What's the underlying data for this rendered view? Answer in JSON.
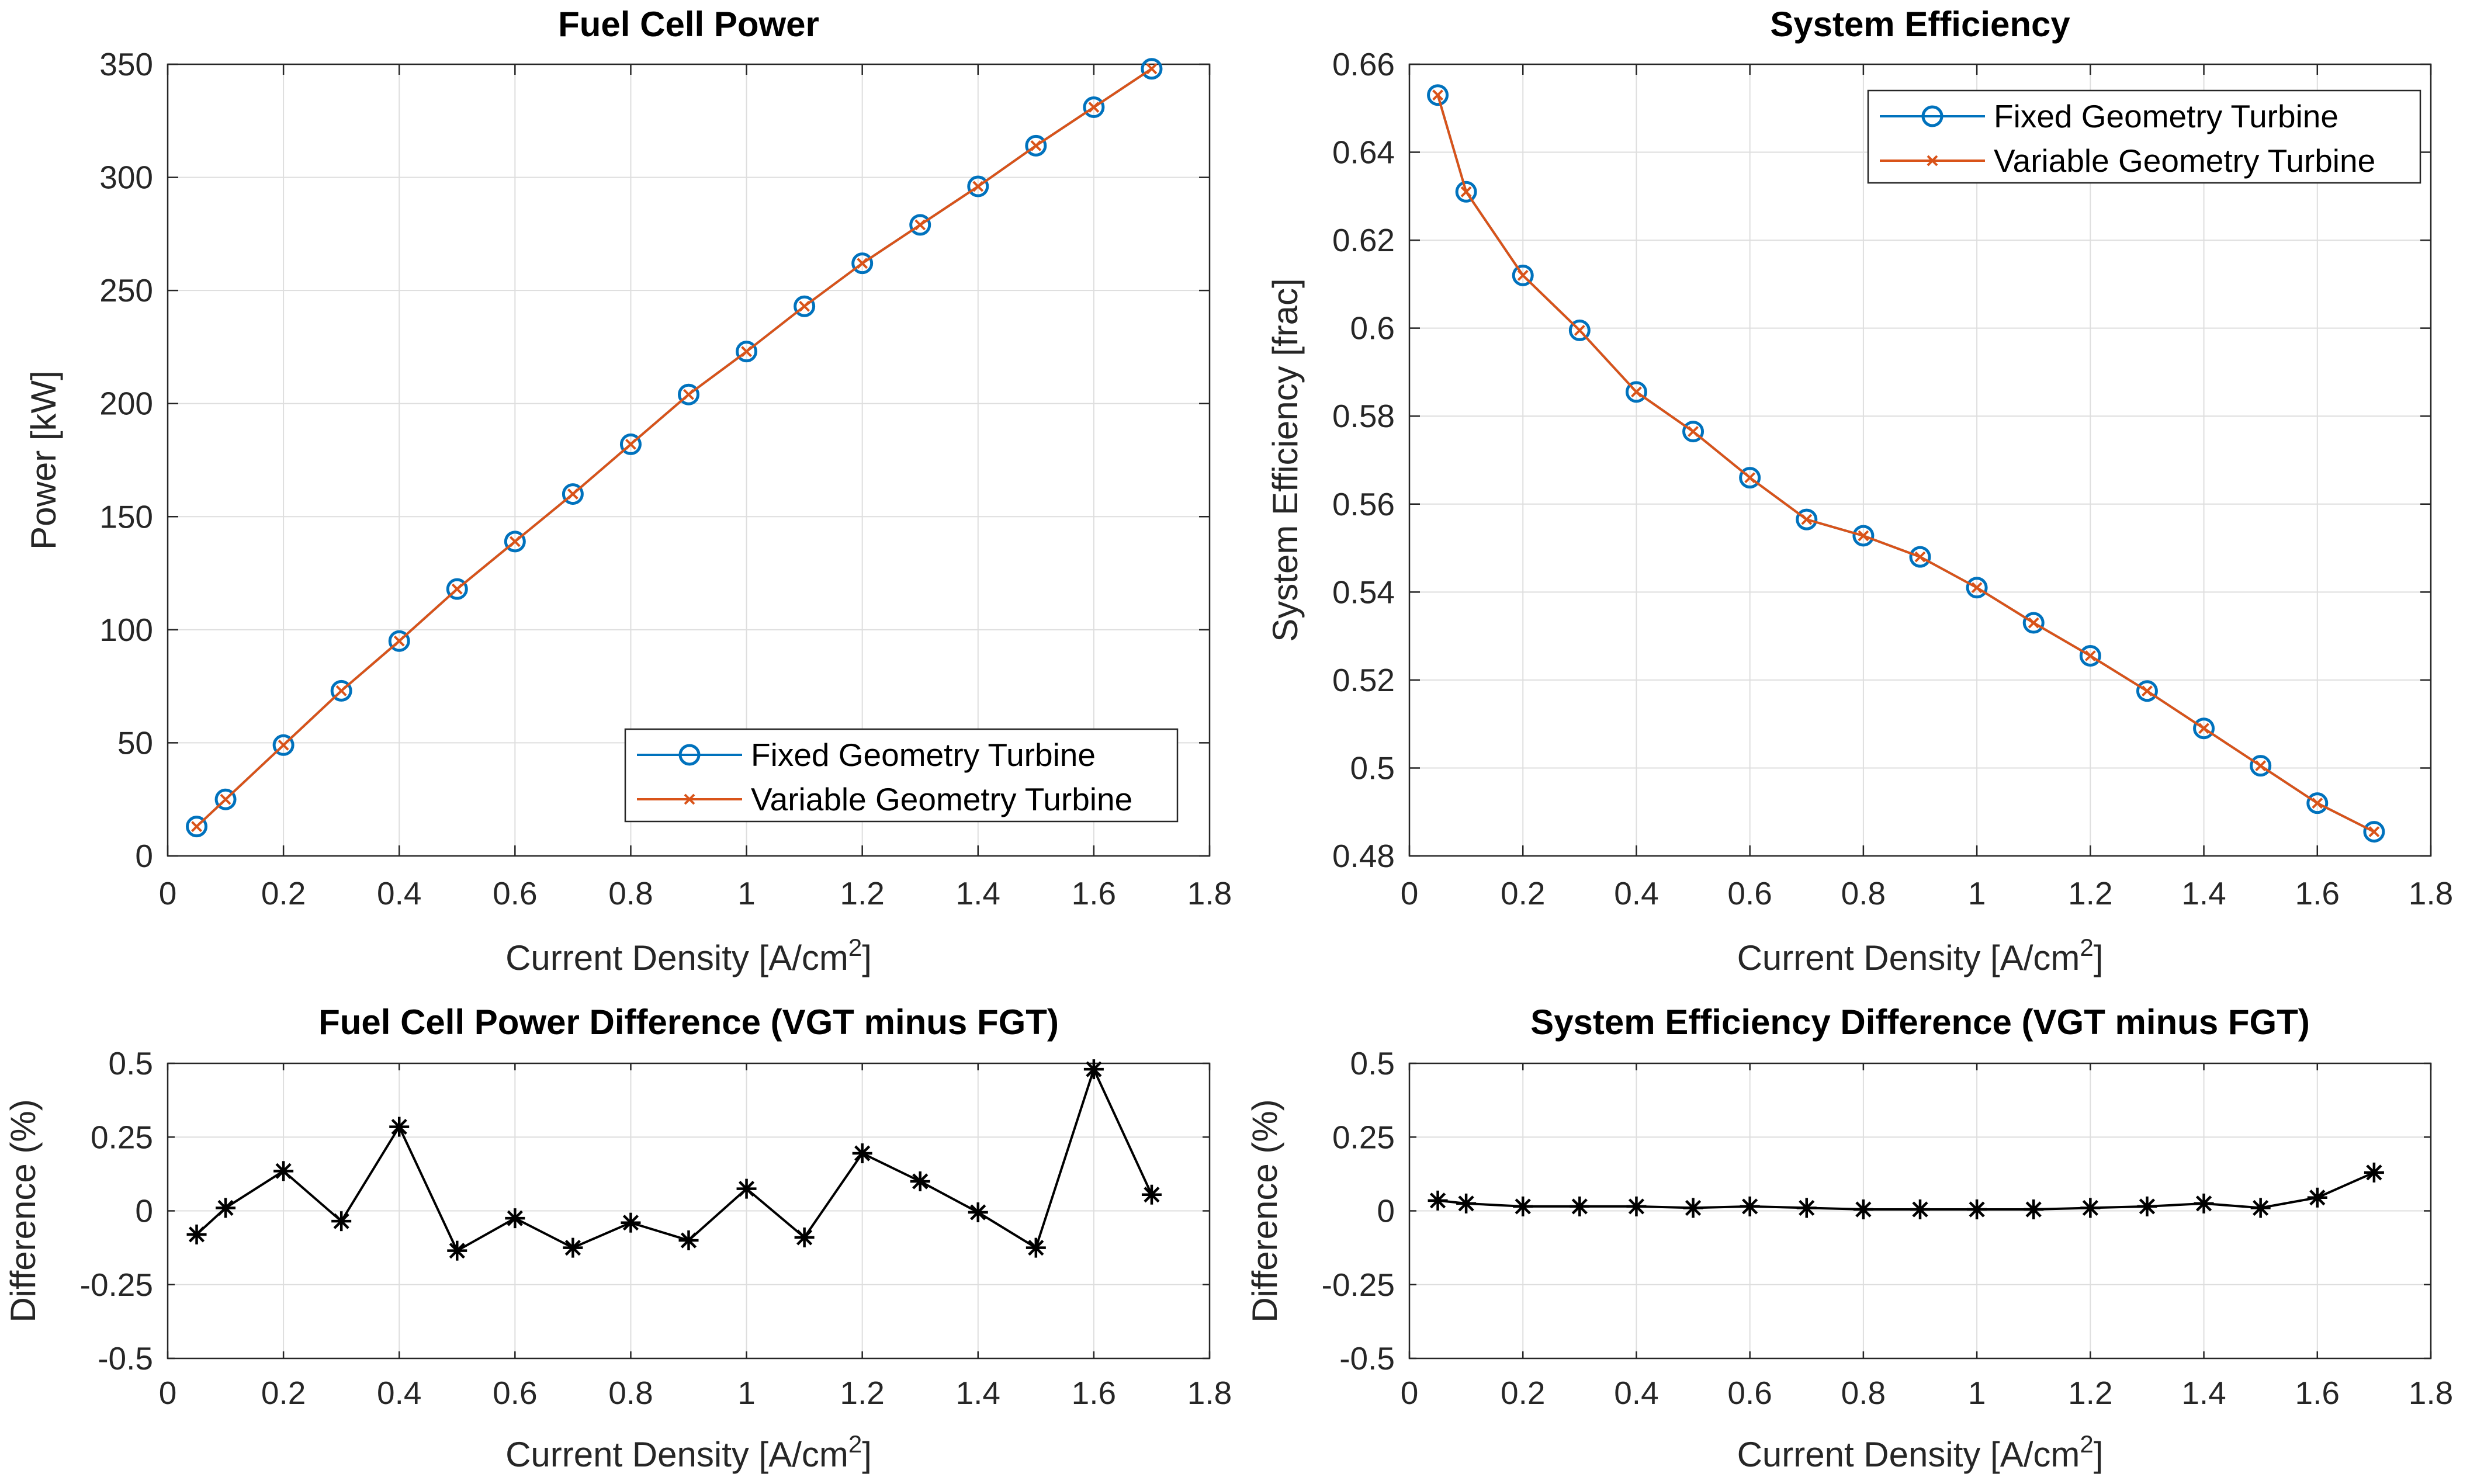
{
  "figure": {
    "fixed_color": "#0072BD",
    "variable_color": "#D95319",
    "difference_color": "#000000",
    "grid_color": "#dedede"
  },
  "chart_data": [
    {
      "id": "fc-power",
      "type": "line",
      "title": "Fuel Cell Power",
      "xlabel": "Current Density [A/cm",
      "xlabel_sup": "2",
      "xlabel_suffix": "]",
      "ylabel": "Power [kW]",
      "xlim": [
        0,
        1.8
      ],
      "ylim": [
        0,
        350
      ],
      "xticks": [
        0,
        0.2,
        0.4,
        0.6,
        0.8,
        1,
        1.2,
        1.4,
        1.6,
        1.8
      ],
      "xtick_labels": [
        "0",
        "0.2",
        "0.4",
        "0.6",
        "0.8",
        "1",
        "1.2",
        "1.4",
        "1.6",
        "1.8"
      ],
      "yticks": [
        0,
        50,
        100,
        150,
        200,
        250,
        300,
        350
      ],
      "ytick_labels": [
        "0",
        "50",
        "100",
        "150",
        "200",
        "250",
        "300",
        "350"
      ],
      "grid": true,
      "legend": "bottom-right",
      "x": [
        0.05,
        0.1,
        0.2,
        0.3,
        0.4,
        0.5,
        0.6,
        0.7,
        0.8,
        0.9,
        1.0,
        1.1,
        1.2,
        1.3,
        1.4,
        1.5,
        1.6,
        1.7
      ],
      "series": [
        {
          "name": "Fixed Geometry Turbine",
          "marker": "circle",
          "color": "#0072BD",
          "values": [
            13,
            25,
            49,
            73,
            95,
            118,
            139,
            160,
            182,
            204,
            223,
            243,
            262,
            279,
            296,
            314,
            331,
            348
          ]
        },
        {
          "name": "Variable Geometry Turbine",
          "marker": "x",
          "color": "#D95319",
          "values": [
            13,
            25,
            49,
            73,
            95,
            118,
            139,
            160,
            182,
            204,
            223,
            243,
            262,
            279,
            296,
            314,
            331,
            348
          ]
        }
      ]
    },
    {
      "id": "sys-eff",
      "type": "line",
      "title": "System Efficiency",
      "xlabel": "Current Density [A/cm",
      "xlabel_sup": "2",
      "xlabel_suffix": "]",
      "ylabel": "System Efficiency [frac]",
      "xlim": [
        0,
        1.8
      ],
      "ylim": [
        0.48,
        0.66
      ],
      "xticks": [
        0,
        0.2,
        0.4,
        0.6,
        0.8,
        1,
        1.2,
        1.4,
        1.6,
        1.8
      ],
      "xtick_labels": [
        "0",
        "0.2",
        "0.4",
        "0.6",
        "0.8",
        "1",
        "1.2",
        "1.4",
        "1.6",
        "1.8"
      ],
      "yticks": [
        0.48,
        0.5,
        0.52,
        0.54,
        0.56,
        0.58,
        0.6,
        0.62,
        0.64,
        0.66
      ],
      "ytick_labels": [
        "0.48",
        "0.5",
        "0.52",
        "0.54",
        "0.56",
        "0.58",
        "0.6",
        "0.62",
        "0.64",
        "0.66"
      ],
      "grid": true,
      "legend": "top-right",
      "x": [
        0.05,
        0.1,
        0.2,
        0.3,
        0.4,
        0.5,
        0.6,
        0.7,
        0.8,
        0.9,
        1.0,
        1.1,
        1.2,
        1.3,
        1.4,
        1.5,
        1.6,
        1.7
      ],
      "series": [
        {
          "name": "Fixed Geometry Turbine",
          "marker": "circle",
          "color": "#0072BD",
          "values": [
            0.653,
            0.631,
            0.612,
            0.5995,
            0.5855,
            0.5765,
            0.566,
            0.5565,
            0.5528,
            0.548,
            0.541,
            0.533,
            0.5255,
            0.5175,
            0.509,
            0.5005,
            0.492,
            0.4855
          ]
        },
        {
          "name": "Variable Geometry Turbine",
          "marker": "x",
          "color": "#D95319",
          "values": [
            0.653,
            0.631,
            0.612,
            0.5995,
            0.5855,
            0.5765,
            0.566,
            0.5565,
            0.5528,
            0.548,
            0.541,
            0.533,
            0.5255,
            0.5175,
            0.509,
            0.5005,
            0.492,
            0.4855
          ]
        }
      ]
    },
    {
      "id": "fc-power-diff",
      "type": "line",
      "title": "Fuel Cell Power Difference (VGT minus FGT)",
      "xlabel": "Current Density [A/cm",
      "xlabel_sup": "2",
      "xlabel_suffix": "]",
      "ylabel": "Difference (%)",
      "xlim": [
        0,
        1.8
      ],
      "ylim": [
        -0.5,
        0.5
      ],
      "xticks": [
        0,
        0.2,
        0.4,
        0.6,
        0.8,
        1,
        1.2,
        1.4,
        1.6,
        1.8
      ],
      "xtick_labels": [
        "0",
        "0.2",
        "0.4",
        "0.6",
        "0.8",
        "1",
        "1.2",
        "1.4",
        "1.6",
        "1.8"
      ],
      "yticks": [
        -0.5,
        -0.25,
        0,
        0.25,
        0.5
      ],
      "ytick_labels": [
        "-0.5",
        "-0.25",
        "0",
        "0.25",
        "0.5"
      ],
      "grid": true,
      "x": [
        0.05,
        0.1,
        0.2,
        0.3,
        0.4,
        0.5,
        0.6,
        0.7,
        0.8,
        0.9,
        1.0,
        1.1,
        1.2,
        1.3,
        1.4,
        1.5,
        1.6,
        1.7
      ],
      "series": [
        {
          "marker": "asterisk",
          "color": "#000000",
          "values": [
            -0.08,
            0.01,
            0.135,
            -0.035,
            0.285,
            -0.135,
            -0.025,
            -0.125,
            -0.04,
            -0.1,
            0.075,
            -0.09,
            0.195,
            0.1,
            -0.005,
            -0.125,
            0.48,
            0.055
          ]
        }
      ]
    },
    {
      "id": "sys-eff-diff",
      "type": "line",
      "title": "System Efficiency Difference (VGT minus FGT)",
      "xlabel": "Current Density [A/cm",
      "xlabel_sup": "2",
      "xlabel_suffix": "]",
      "ylabel": "Difference (%)",
      "xlim": [
        0,
        1.8
      ],
      "ylim": [
        -0.5,
        0.5
      ],
      "xticks": [
        0,
        0.2,
        0.4,
        0.6,
        0.8,
        1,
        1.2,
        1.4,
        1.6,
        1.8
      ],
      "xtick_labels": [
        "0",
        "0.2",
        "0.4",
        "0.6",
        "0.8",
        "1",
        "1.2",
        "1.4",
        "1.6",
        "1.8"
      ],
      "yticks": [
        -0.5,
        -0.25,
        0,
        0.25,
        0.5
      ],
      "ytick_labels": [
        "-0.5",
        "-0.25",
        "0",
        "0.25",
        "0.5"
      ],
      "grid": true,
      "x": [
        0.05,
        0.1,
        0.2,
        0.3,
        0.4,
        0.5,
        0.6,
        0.7,
        0.8,
        0.9,
        1.0,
        1.1,
        1.2,
        1.3,
        1.4,
        1.5,
        1.6,
        1.7
      ],
      "series": [
        {
          "marker": "asterisk",
          "color": "#000000",
          "values": [
            0.035,
            0.025,
            0.015,
            0.015,
            0.015,
            0.01,
            0.015,
            0.01,
            0.005,
            0.005,
            0.005,
            0.005,
            0.01,
            0.015,
            0.025,
            0.01,
            0.045,
            0.13
          ]
        }
      ]
    }
  ]
}
